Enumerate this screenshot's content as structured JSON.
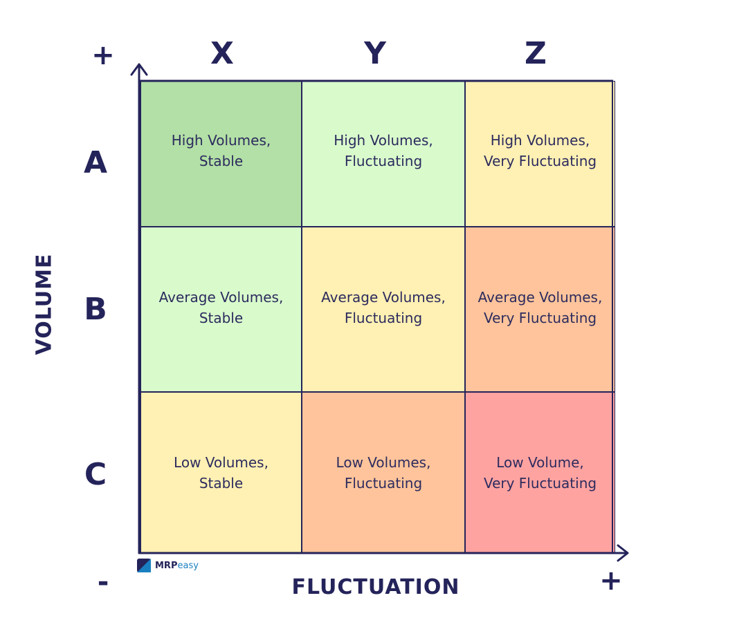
{
  "columns": [
    "X",
    "Y",
    "Z"
  ],
  "rows": [
    "A",
    "B",
    "C"
  ],
  "y_axis": {
    "title": "VOLUME",
    "plus": "+",
    "minus": "-"
  },
  "x_axis": {
    "title": "FLUCTUATION",
    "plus": "+"
  },
  "cells": [
    [
      {
        "text": "High Volumes,\nStable",
        "color": "#b3e0a6"
      },
      {
        "text": "High Volumes,\nFluctuating",
        "color": "#d9fbcc"
      },
      {
        "text": "High Volumes,\nVery Fluctuating",
        "color": "#fff0b3"
      }
    ],
    [
      {
        "text": "Average Volumes,\nStable",
        "color": "#d9fbcc"
      },
      {
        "text": "Average Volumes,\nFluctuating",
        "color": "#fff0b3"
      },
      {
        "text": "Average Volumes,\nVery Fluctuating",
        "color": "#ffc49b"
      }
    ],
    [
      {
        "text": "Low Volumes,\nStable",
        "color": "#fff0b3"
      },
      {
        "text": "Low Volumes,\nFluctuating",
        "color": "#ffc49b"
      },
      {
        "text": "Low Volume,\nVery Fluctuating",
        "color": "#ffa3a1"
      }
    ]
  ],
  "brand": {
    "name_bold": "MRP",
    "name_light": "easy",
    "mark_color": "#1a7fc1"
  },
  "accent": "#24235a"
}
